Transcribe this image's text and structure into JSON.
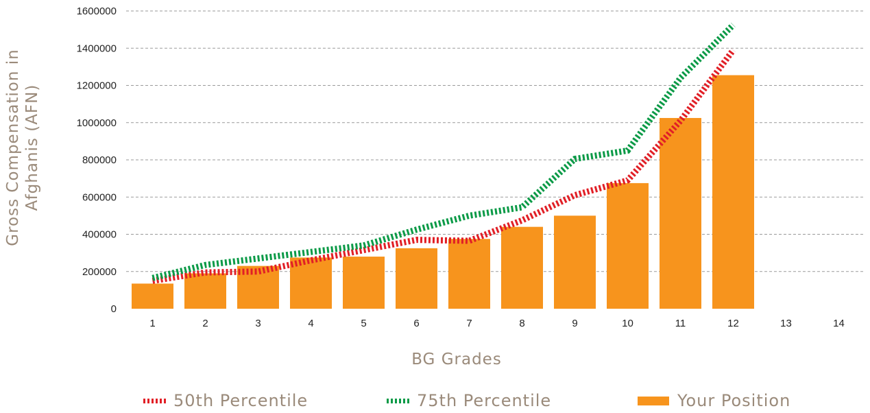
{
  "chart_data": {
    "type": "bar",
    "xlabel": "BG Grades",
    "ylabel": "Gross Compensation in Afghanis (AFN)",
    "ylabel_lines": [
      "Gross Compensation in",
      "Afghanis (AFN)"
    ],
    "categories": [
      "1",
      "2",
      "3",
      "4",
      "5",
      "6",
      "7",
      "8",
      "9",
      "10",
      "11",
      "12",
      "13",
      "14"
    ],
    "ylim": [
      0,
      1600000
    ],
    "yticks": [
      "0",
      "200000",
      "400000",
      "600000",
      "800000",
      "1000000",
      "1200000",
      "1400000",
      "1600000"
    ],
    "grid": true,
    "legend_position": "bottom",
    "series": [
      {
        "name": "Your Position",
        "kind": "bar",
        "color": "#f7941d",
        "values": [
          135000,
          190000,
          230000,
          275000,
          280000,
          325000,
          375000,
          440000,
          500000,
          675000,
          1025000,
          1255000,
          null,
          null
        ]
      },
      {
        "name": "50th Percentile",
        "kind": "line",
        "color": "#e11f26",
        "values": [
          150000,
          195000,
          200000,
          260000,
          315000,
          370000,
          365000,
          475000,
          610000,
          690000,
          1010000,
          1390000,
          null,
          null
        ]
      },
      {
        "name": "75th Percentile",
        "kind": "line",
        "color": "#0b9a47",
        "values": [
          165000,
          235000,
          270000,
          305000,
          340000,
          425000,
          500000,
          545000,
          805000,
          850000,
          1240000,
          1525000,
          null,
          null
        ]
      }
    ]
  }
}
